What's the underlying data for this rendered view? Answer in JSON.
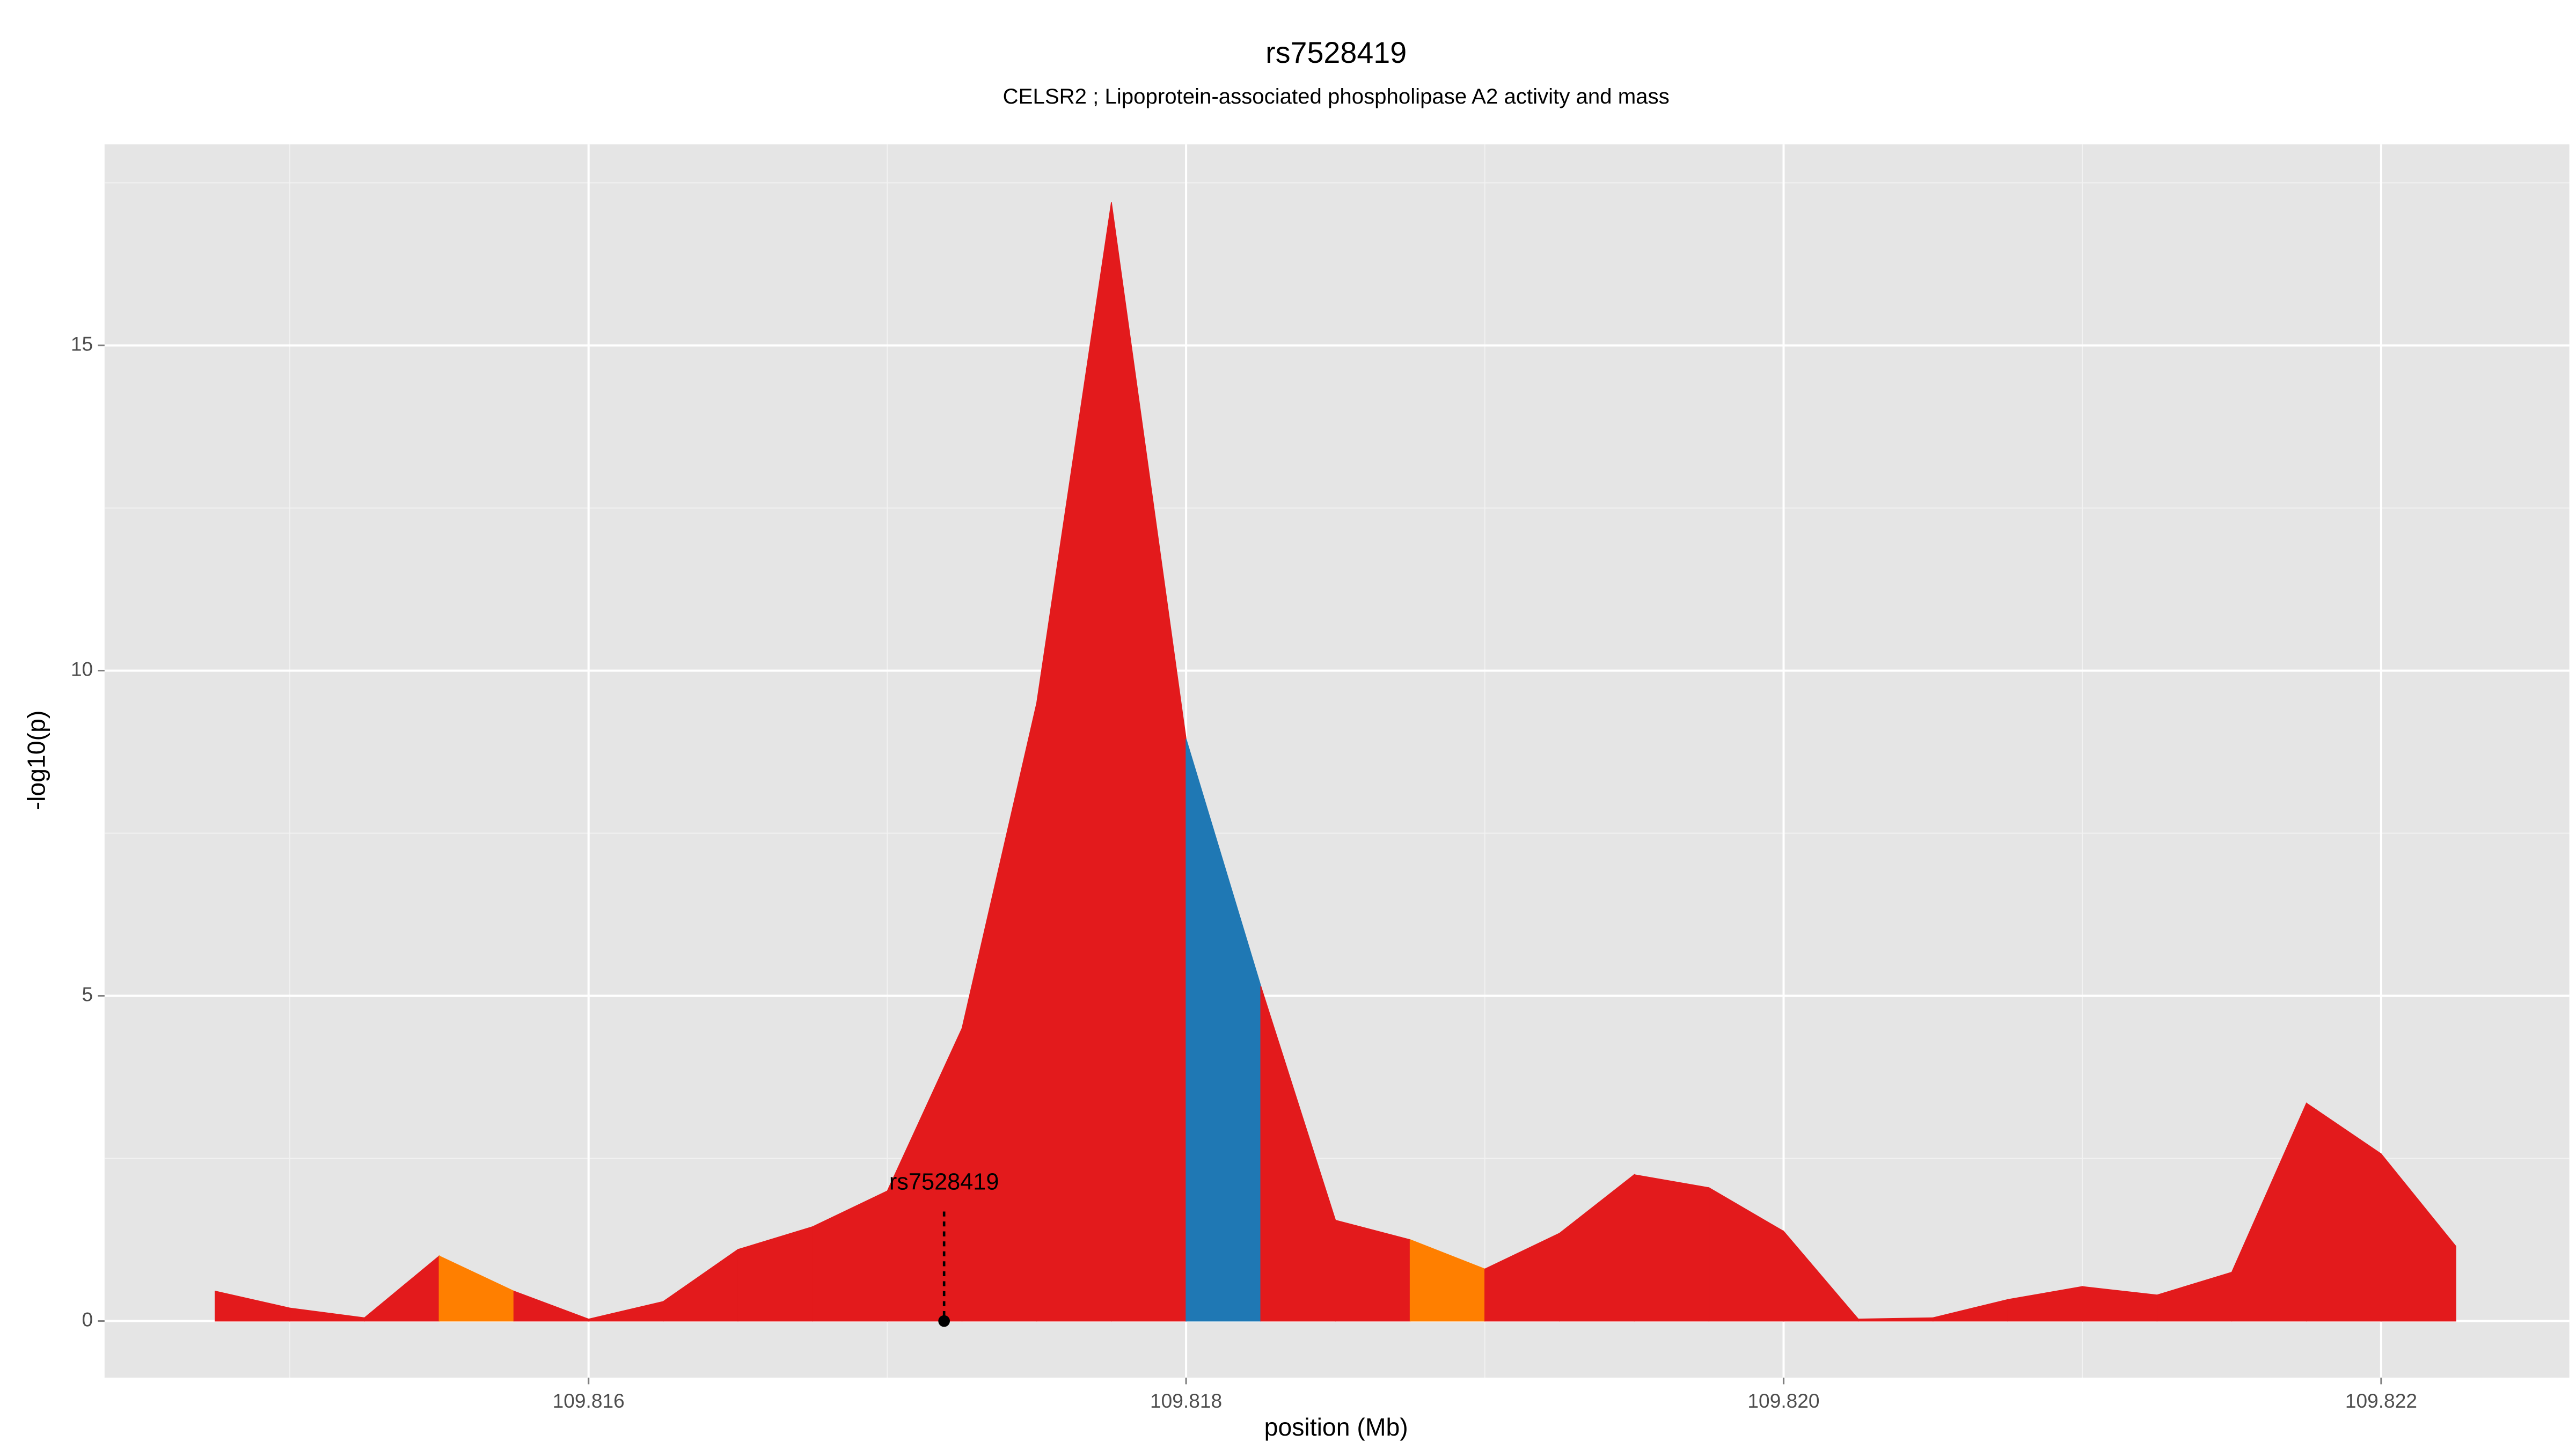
{
  "chart_data": {
    "type": "area",
    "title": "rs7528419",
    "subtitle": "CELSR2 ; Lipoprotein-associated phospholipase A2 activity and mass",
    "x_label": "position (Mb)",
    "y_label": "-log10(p)",
    "x": [
      109.81475,
      109.815,
      109.81525,
      109.8155,
      109.81575,
      109.816,
      109.81625,
      109.8165,
      109.81675,
      109.817,
      109.81725,
      109.8175,
      109.81775,
      109.818,
      109.81825,
      109.8185,
      109.81875,
      109.819,
      109.81925,
      109.8195,
      109.81975,
      109.82,
      109.82025,
      109.8205,
      109.82075,
      109.821,
      109.82125,
      109.8215,
      109.82175,
      109.822,
      109.82225
    ],
    "values": [
      0.46,
      0.2,
      0.05,
      1.0,
      0.46,
      0.03,
      0.3,
      1.1,
      1.45,
      2.0,
      4.5,
      9.5,
      17.2,
      8.95,
      5.15,
      1.55,
      1.25,
      0.8,
      1.35,
      2.25,
      2.05,
      1.38,
      0.03,
      0.05,
      0.33,
      0.53,
      0.4,
      0.75,
      3.35,
      2.57,
      1.15
    ],
    "segment_colors": [
      "#e31a1c",
      "#e31a1c",
      "#e31a1c",
      "#ff7f00",
      "#e31a1c",
      "#e31a1c",
      "#e31a1c",
      "#e31a1c",
      "#e31a1c",
      "#e31a1c",
      "#e31a1c",
      "#e31a1c",
      "#e31a1c",
      "#1f78b4",
      "#e31a1c",
      "#e31a1c",
      "#ff7f00",
      "#e31a1c",
      "#e31a1c",
      "#e31a1c",
      "#e31a1c",
      "#e31a1c",
      "#e31a1c",
      "#e31a1c",
      "#e31a1c",
      "#e31a1c",
      "#e31a1c",
      "#e31a1c",
      "#e31a1c",
      "#e31a1c"
    ],
    "xlim": [
      109.81438,
      109.82263
    ],
    "ylim": [
      -0.87,
      18.09
    ],
    "xticks": [
      109.816,
      109.818,
      {
        "value": 109.82,
        "label": "109.820"
      },
      109.822
    ],
    "yticks": [
      0,
      5,
      10,
      15
    ],
    "grid": true,
    "annotation": {
      "text": "rs7528419",
      "x": 109.81719
    }
  }
}
